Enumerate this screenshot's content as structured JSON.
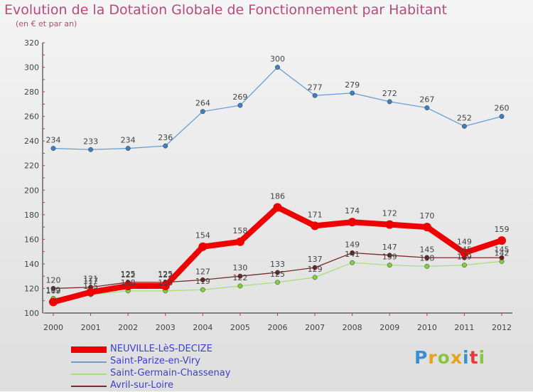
{
  "title": "Evolution de la Dotation Globale de Fonctionnement par Habitant",
  "subtitle": "(en € et par an)",
  "logo": {
    "text": "Proxiti"
  },
  "chart_data": {
    "type": "line",
    "x": [
      "2000",
      "2001",
      "2002",
      "2003",
      "2004",
      "2005",
      "2006",
      "2007",
      "2008",
      "2009",
      "2010",
      "2011",
      "2012"
    ],
    "ylim": [
      100,
      320
    ],
    "yticks": [
      100,
      120,
      140,
      160,
      180,
      200,
      220,
      240,
      260,
      280,
      300,
      320
    ],
    "grid": false,
    "legend_position": "bottom-left",
    "series": [
      {
        "name": "NEUVILLE-LèS-DECIZE",
        "color": "#ee0000",
        "point_color": "#ee0000",
        "values": [
          109,
          117,
          122,
          122,
          154,
          158,
          186,
          171,
          174,
          172,
          170,
          149,
          159
        ],
        "bold": true
      },
      {
        "name": "Saint-Parize-en-Viry",
        "color": "#6a9fd6",
        "point_color": "#3f7fc0",
        "values": [
          234,
          233,
          234,
          236,
          264,
          269,
          300,
          277,
          279,
          272,
          267,
          252,
          260
        ]
      },
      {
        "name": "Saint-Germain-Chassenay",
        "color": "#a6e07a",
        "point_color": "#7fcf3f",
        "values": [
          112,
          115,
          118,
          118,
          119,
          122,
          125,
          129,
          141,
          139,
          138,
          139,
          142
        ]
      },
      {
        "name": "Avril-sur-Loire",
        "color": "#7a2c2c",
        "point_color": "#6b1f1f",
        "values": [
          120,
          121,
          125,
          125,
          127,
          130,
          133,
          137,
          149,
          147,
          145,
          145,
          145
        ]
      }
    ]
  }
}
